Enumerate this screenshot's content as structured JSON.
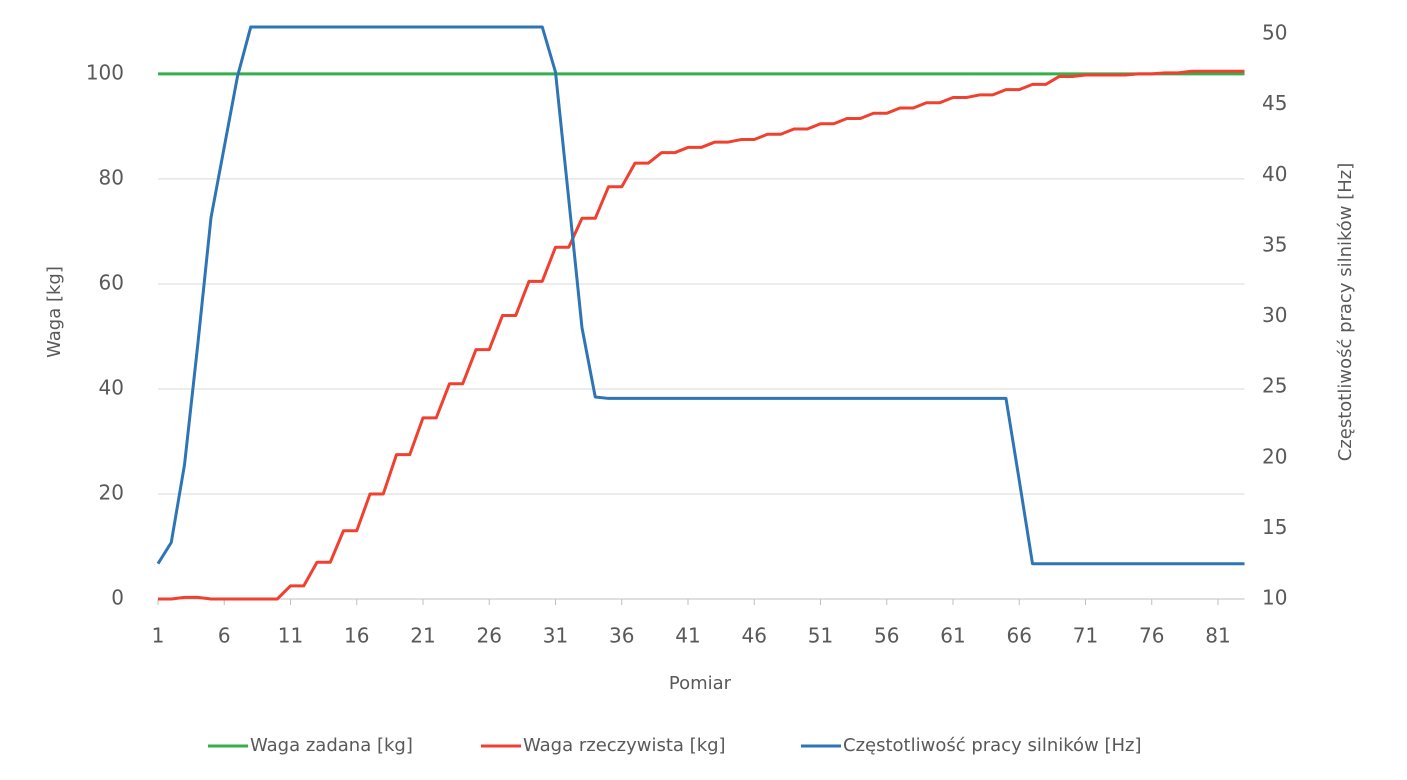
{
  "chart_data": {
    "type": "line",
    "xlabel": "Pomiar",
    "ylabel": "Waga [kg]",
    "y2label": "Częstotliwość pracy silników [Hz]",
    "x": [
      1,
      2,
      3,
      4,
      5,
      6,
      7,
      8,
      9,
      10,
      11,
      12,
      13,
      14,
      15,
      16,
      17,
      18,
      19,
      20,
      21,
      22,
      23,
      24,
      25,
      26,
      27,
      28,
      29,
      30,
      31,
      32,
      33,
      34,
      35,
      36,
      37,
      38,
      39,
      40,
      41,
      42,
      43,
      44,
      45,
      46,
      47,
      48,
      49,
      50,
      51,
      52,
      53,
      54,
      55,
      56,
      57,
      58,
      59,
      60,
      61,
      62,
      63,
      64,
      65,
      66,
      67,
      68,
      69,
      70,
      71,
      72,
      73,
      74,
      75,
      76,
      77,
      78,
      79,
      80,
      81,
      82,
      83
    ],
    "xlim": [
      1,
      83
    ],
    "xticks": [
      1,
      6,
      11,
      16,
      21,
      26,
      31,
      36,
      41,
      46,
      51,
      56,
      61,
      66,
      71,
      76,
      81
    ],
    "ylim": [
      0,
      107.6
    ],
    "yticks": [
      0,
      20,
      40,
      60,
      80,
      100
    ],
    "y2lim": [
      10,
      50
    ],
    "y2ticks": [
      10,
      15,
      20,
      25,
      30,
      35,
      40,
      45,
      50
    ],
    "grid": true,
    "legend": "bottom",
    "series": [
      {
        "name": "Waga zadana [kg]",
        "color": "#33b04a",
        "values": [
          100,
          100,
          100,
          100,
          100,
          100,
          100,
          100,
          100,
          100,
          100,
          100,
          100,
          100,
          100,
          100,
          100,
          100,
          100,
          100,
          100,
          100,
          100,
          100,
          100,
          100,
          100,
          100,
          100,
          100,
          100,
          100,
          100,
          100,
          100,
          100,
          100,
          100,
          100,
          100,
          100,
          100,
          100,
          100,
          100,
          100,
          100,
          100,
          100,
          100,
          100,
          100,
          100,
          100,
          100,
          100,
          100,
          100,
          100,
          100,
          100,
          100,
          100,
          100,
          100,
          100,
          100,
          100,
          100,
          100,
          100,
          100,
          100,
          100,
          100,
          100,
          100,
          100,
          100,
          100,
          100,
          100,
          100
        ]
      },
      {
        "name": "Waga rzeczywista [kg]",
        "color": "#f0402f",
        "values": [
          0,
          0,
          0.3,
          0.3,
          0,
          0,
          0,
          0,
          0,
          0,
          2.5,
          2.5,
          7,
          7,
          13,
          13,
          20,
          20,
          27.5,
          27.5,
          34.5,
          34.5,
          41,
          41,
          47.5,
          47.5,
          54,
          54,
          60.5,
          60.5,
          67,
          67,
          72.5,
          72.5,
          78.5,
          78.5,
          83,
          83,
          85,
          85,
          86,
          86,
          87,
          87,
          87.5,
          87.5,
          88.5,
          88.5,
          89.5,
          89.5,
          90.5,
          90.5,
          91.5,
          91.5,
          92.5,
          92.5,
          93.5,
          93.5,
          94.5,
          94.5,
          95.5,
          95.5,
          96,
          96,
          97,
          97,
          98,
          98,
          99.5,
          99.5,
          99.8,
          99.8,
          99.8,
          99.8,
          100,
          100,
          100.2,
          100.2,
          100.5,
          100.5,
          100.5,
          100.5,
          100.5
        ]
      },
      {
        "name": "Częstotliwość pracy silników [Hz]",
        "color": "#2e75b6",
        "axis": "y2",
        "values": [
          12.5,
          14,
          19.5,
          28,
          37,
          42,
          47,
          50.5,
          50.5,
          50.5,
          50.5,
          50.5,
          50.5,
          50.5,
          50.5,
          50.5,
          50.5,
          50.5,
          50.5,
          50.5,
          50.5,
          50.5,
          50.5,
          50.5,
          50.5,
          50.5,
          50.5,
          50.5,
          50.5,
          50.5,
          47.3,
          38.3,
          29.2,
          24.3,
          24.2,
          24.2,
          24.2,
          24.2,
          24.2,
          24.2,
          24.2,
          24.2,
          24.2,
          24.2,
          24.2,
          24.2,
          24.2,
          24.2,
          24.2,
          24.2,
          24.2,
          24.2,
          24.2,
          24.2,
          24.2,
          24.2,
          24.2,
          24.2,
          24.2,
          24.2,
          24.2,
          24.2,
          24.2,
          24.2,
          24.2,
          18.4,
          12.5,
          12.5,
          12.5,
          12.5,
          12.5,
          12.5,
          12.5,
          12.5,
          12.5,
          12.5,
          12.5,
          12.5,
          12.5,
          12.5,
          12.5,
          12.5,
          12.5
        ]
      }
    ]
  }
}
